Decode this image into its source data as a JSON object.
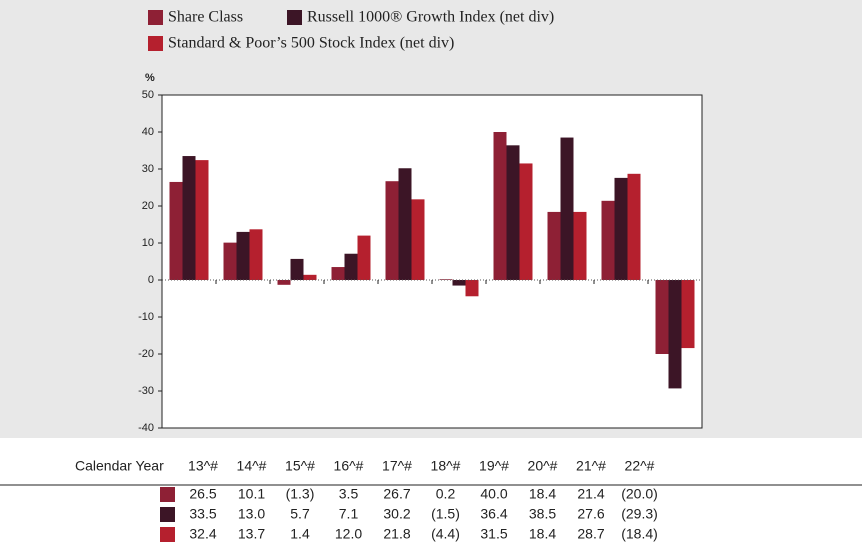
{
  "chart_data": {
    "type": "bar",
    "ylabel": "%",
    "xlabel": "Calendar Year",
    "categories": [
      "13^#",
      "14^#",
      "15^#",
      "16^#",
      "17^#",
      "18^#",
      "19^#",
      "20^#",
      "21^#",
      "22^#"
    ],
    "series": [
      {
        "name": "Share Class",
        "color": "#8e2035",
        "values": [
          26.5,
          10.1,
          -1.3,
          3.5,
          26.7,
          0.2,
          40.0,
          18.4,
          21.4,
          -20.0
        ],
        "value_labels": [
          "26.5",
          "10.1",
          "(1.3)",
          "3.5",
          "26.7",
          "0.2",
          "40.0",
          "18.4",
          "21.4",
          "(20.0)"
        ]
      },
      {
        "name": "Russell 1000® Growth Index (net div)",
        "color": "#3c1526",
        "values": [
          33.5,
          13.0,
          5.7,
          7.1,
          30.2,
          -1.5,
          36.4,
          38.5,
          27.6,
          -29.3
        ],
        "value_labels": [
          "33.5",
          "13.0",
          "5.7",
          "7.1",
          "30.2",
          "(1.5)",
          "36.4",
          "38.5",
          "27.6",
          "(29.3)"
        ]
      },
      {
        "name": "Standard & Poor’s 500 Stock Index (net div)",
        "color": "#b5202e",
        "values": [
          32.4,
          13.7,
          1.4,
          12.0,
          21.8,
          -4.4,
          31.5,
          18.4,
          28.7,
          -18.4
        ],
        "value_labels": [
          "32.4",
          "13.7",
          "1.4",
          "12.0",
          "21.8",
          "(4.4)",
          "31.5",
          "18.4",
          "28.7",
          "(18.4)"
        ]
      }
    ],
    "ylim": [
      -40,
      50
    ],
    "yticks": [
      -40,
      -30,
      -20,
      -10,
      0,
      10,
      20,
      30,
      40,
      50
    ],
    "grid": false
  }
}
